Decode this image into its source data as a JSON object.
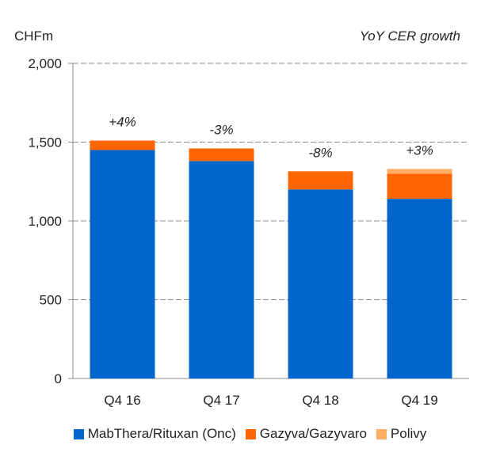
{
  "header": {
    "unit_label": "CHFm",
    "subtitle": "YoY CER growth"
  },
  "chart_data": {
    "type": "bar",
    "stacked": true,
    "categories": [
      "Q4 16",
      "Q4 17",
      "Q4 18",
      "Q4 19"
    ],
    "series": [
      {
        "name": "MabThera/Rituxan (Onc)",
        "color": "#0066cc",
        "values": [
          1450,
          1380,
          1200,
          1140
        ]
      },
      {
        "name": "Gazyva/Gazyvaro",
        "color": "#ff6600",
        "values": [
          60,
          80,
          115,
          160
        ]
      },
      {
        "name": "Polivy",
        "color": "#ffae63",
        "values": [
          0,
          0,
          0,
          30
        ]
      }
    ],
    "growth_labels": [
      "+4%",
      "-3%",
      "-8%",
      "+3%"
    ],
    "yticks": [
      0,
      500,
      1000,
      1500,
      2000
    ],
    "ytick_labels": [
      "0",
      "500",
      "1,000",
      "1,500",
      "2,000"
    ],
    "ylim": [
      0,
      2000
    ],
    "ylabel": "CHFm",
    "grid": true,
    "legend_position": "bottom"
  }
}
